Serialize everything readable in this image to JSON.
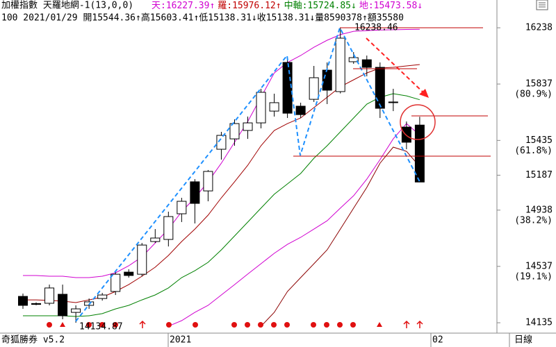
{
  "header": {
    "title": "加權指數 天羅地網-1(13,0,0)",
    "readouts": [
      {
        "text": "天:16227.39↑",
        "color": "#d000d0"
      },
      {
        "text": "羅:15976.12↑",
        "color": "#c00000"
      },
      {
        "text": "中軸:15724.85↓",
        "color": "#008000"
      },
      {
        "text": "地:15473.58↓",
        "color": "#d000d0"
      }
    ],
    "info": "100 2021/01/29 開15544.36↑高15603.41↑低15138.31↓收15138.31↓量8590378↑額35580"
  },
  "footer": {
    "brand": "奇狐勝券 v5.2",
    "period": "日線",
    "time_labels": [
      "2021",
      "02"
    ]
  },
  "chart_data": {
    "type": "candlestick",
    "open": [
      14323,
      14272,
      14274,
      14338,
      14209,
      14259,
      14308,
      14358,
      14496,
      14481,
      14714,
      14729,
      14912,
      15140,
      15075,
      15372,
      15446,
      15506,
      15560,
      15644,
      15991,
      15679,
      15728,
      15936,
      15783,
      15996,
      16010,
      15956,
      15709,
      15530,
      15544.36
    ],
    "high": [
      14343,
      14280,
      14407,
      14407,
      14259,
      14308,
      14348,
      14496,
      14516,
      14704,
      14803,
      14927,
      15026,
      15159,
      15224,
      15496,
      15585,
      15605,
      15803,
      15768,
      16015,
      15704,
      15966,
      15991,
      16238.46,
      16065,
      16040,
      15991,
      15803,
      15570,
      15603.41
    ],
    "low": [
      14234,
      14260,
      14259,
      14160,
      14134.87,
      14234,
      14293,
      14333,
      14457,
      14466,
      14704,
      14679,
      14853,
      14843,
      15001,
      15298,
      15397,
      15446,
      15521,
      15605,
      15595,
      15595,
      15709,
      15694,
      15770,
      15981,
      15892,
      15595,
      15644,
      15372,
      15138.31
    ],
    "close": [
      14259,
      14266,
      14383,
      14185,
      14234,
      14284,
      14333,
      14481,
      14472,
      14689,
      14739,
      14892,
      15001,
      14986,
      15214,
      15471,
      15555,
      15560,
      15778,
      15704,
      15629,
      15619,
      15882,
      15793,
      16164,
      16025,
      15956,
      15664,
      15705,
      15422,
      15138.31
    ],
    "up_color": "#ffffff",
    "down_color": "#000000",
    "series": [
      {
        "name": "天",
        "color": "#d000d0",
        "values": [
          14472,
          14472,
          14467,
          14467,
          14457,
          14457,
          14467,
          14491,
          14541,
          14605,
          14704,
          14803,
          14927,
          15026,
          15140,
          15273,
          15422,
          15570,
          15743,
          15916,
          15991,
          16040,
          16099,
          16149,
          16189,
          16213,
          16218,
          16222,
          16224,
          16226,
          16227.39
        ]
      },
      {
        "name": "羅",
        "color": "#a00000",
        "values": [
          14298,
          14298,
          14294,
          14289,
          14279,
          14298,
          14318,
          14358,
          14407,
          14467,
          14531,
          14615,
          14714,
          14803,
          14902,
          15026,
          15140,
          15258,
          15397,
          15506,
          15555,
          15595,
          15669,
          15743,
          15817,
          15867,
          15916,
          15951,
          15956,
          15966,
          15976.12
        ]
      },
      {
        "name": "中軸",
        "color": "#008000",
        "values": [
          14185,
          14185,
          14185,
          14185,
          14180,
          14185,
          14200,
          14234,
          14259,
          14298,
          14333,
          14383,
          14457,
          14506,
          14566,
          14655,
          14754,
          14853,
          14952,
          15051,
          15125,
          15199,
          15308,
          15397,
          15496,
          15595,
          15694,
          15743,
          15768,
          15753,
          15724.85
        ]
      },
      {
        "name": "地",
        "color": "#d000d0",
        "values": [
          null,
          null,
          null,
          null,
          null,
          null,
          null,
          null,
          null,
          null,
          null,
          14110,
          14150,
          14209,
          14259,
          14333,
          14407,
          14482,
          14556,
          14630,
          14694,
          14744,
          14803,
          14862,
          14952,
          15041,
          15159,
          15298,
          15446,
          15555,
          15473.58
        ]
      },
      {
        "color": "#8b0000",
        "values": [
          null,
          null,
          null,
          null,
          null,
          null,
          null,
          null,
          null,
          null,
          null,
          null,
          null,
          null,
          null,
          null,
          null,
          null,
          14110,
          14209,
          14358,
          14457,
          14556,
          14655,
          14803,
          14952,
          15100,
          15273,
          15387,
          15357,
          15248
        ]
      }
    ],
    "ylim": [
      14071,
      16347
    ],
    "yticks": [
      16238,
      15837,
      15435,
      15187,
      14938,
      14537,
      14135
    ],
    "ytick_notes": [
      null,
      "(80.9%)",
      "(61.8%)",
      null,
      "(38.2%)",
      "(19.1%)",
      null
    ]
  }
}
